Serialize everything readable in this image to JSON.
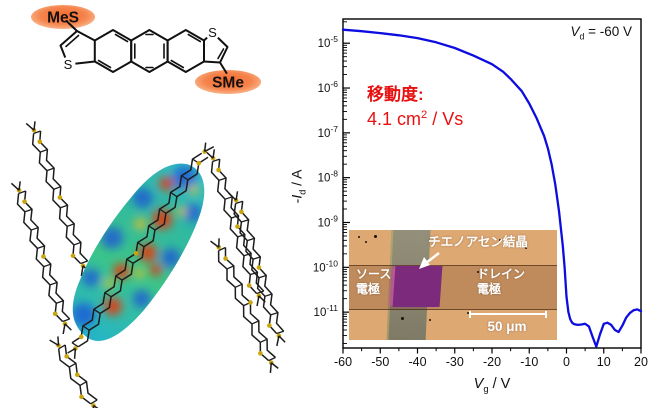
{
  "molecule_panel": {
    "mes_label": "MeS",
    "sme_label": "SMe",
    "s_left": "S",
    "s_right": "S",
    "highlight_color": "#f46f2e"
  },
  "chart": {
    "vd": {
      "var": "V",
      "sub": "d",
      "rest": " = -60 V"
    },
    "annotation": {
      "line1": "移動度:",
      "value_pre": "4.1 cm",
      "value_sup": "2",
      "value_post": " / Vs",
      "color": "#e81111"
    },
    "x_axis": {
      "label_var": "V",
      "label_sub": "g",
      "label_rest": " / V"
    },
    "y_axis": {
      "label_pre": "-",
      "label_var": "I",
      "label_sub": "d",
      "label_rest": " / A"
    }
  },
  "chart_data": {
    "type": "line",
    "title": "",
    "xlabel": "Vg / V",
    "ylabel": "-Id / A",
    "x_range": [
      -60,
      20
    ],
    "y_log10_range": [
      -11.8,
      -4.46
    ],
    "x_ticks": [
      -60,
      -50,
      -40,
      -30,
      -20,
      -10,
      0,
      10,
      20
    ],
    "x_minor_step": 5,
    "y_tick_exponents": [
      -5,
      -6,
      -7,
      -8,
      -9,
      -10,
      -11
    ],
    "grid": false,
    "legend": "none",
    "series": [
      {
        "name": "transfer curve (Vd = -60 V)",
        "color": "#0d0de0",
        "x": [
          -60,
          -55,
          -50,
          -45,
          -40,
          -35,
          -30,
          -25,
          -20,
          -17,
          -15,
          -12,
          -10,
          -8,
          -6,
          -5,
          -4,
          -3,
          -2,
          -1,
          -0.5,
          0,
          0.5,
          1,
          1.5,
          2,
          3,
          4,
          5,
          6,
          7,
          8,
          9,
          10,
          11,
          12,
          13,
          14,
          15,
          16,
          17,
          18,
          19,
          20
        ],
        "y": [
          2e-05,
          1.85e-05,
          1.68e-05,
          1.5e-05,
          1.3e-05,
          1.05e-05,
          7.8e-06,
          5.3e-06,
          3.4e-06,
          2.3e-06,
          1.6e-06,
          8.5e-07,
          4.5e-07,
          2.1e-07,
          8.5e-08,
          4.5e-08,
          2e-08,
          7e-09,
          1.8e-09,
          3e-10,
          1e-10,
          2.2e-11,
          1e-11,
          7e-12,
          5.8e-12,
          5.4e-12,
          5.2e-12,
          5.3e-12,
          5.5e-12,
          4.8e-12,
          2.8e-12,
          1.7e-12,
          3.2e-12,
          5.5e-12,
          5.8e-12,
          5.2e-12,
          4e-12,
          3.6e-12,
          5e-12,
          7.5e-12,
          9.5e-12,
          1.1e-11,
          1.15e-11,
          1.05e-11
        ]
      }
    ],
    "annotations": [
      {
        "text": "移動度: 4.1 cm2 / Vs",
        "color": "#e81111"
      },
      {
        "text": "Vd = -60 V",
        "color": "#111111"
      }
    ]
  },
  "inset": {
    "crystal_label": "チエノアセン結晶",
    "source_line1": "ソース",
    "source_line2": "電極",
    "drain_line1": "ドレイン",
    "drain_line2": "電極",
    "scale_label": "50 μm"
  }
}
